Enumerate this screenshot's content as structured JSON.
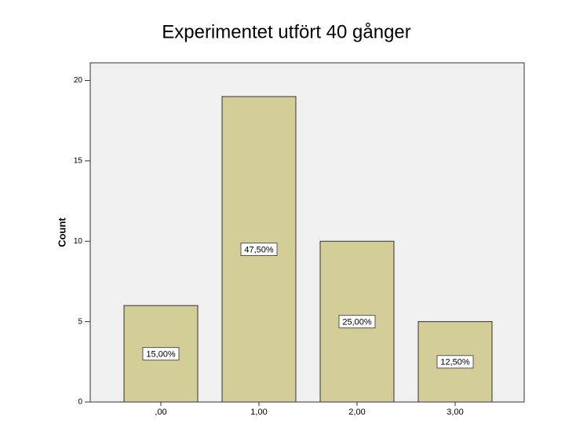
{
  "chart_data": {
    "type": "bar",
    "title": "Experimentet utfört 40 gånger",
    "ylabel": "Count",
    "categories": [
      ",00",
      "1,00",
      "2,00",
      "3,00"
    ],
    "values": [
      6,
      19,
      10,
      5
    ],
    "bar_labels": [
      "15,00%",
      "47,50%",
      "25,00%",
      "12,50%"
    ],
    "color": "#d3ce97",
    "ylim": [
      0,
      21.1
    ],
    "yticks": [
      0,
      5,
      10,
      15,
      20
    ],
    "grid": false
  }
}
